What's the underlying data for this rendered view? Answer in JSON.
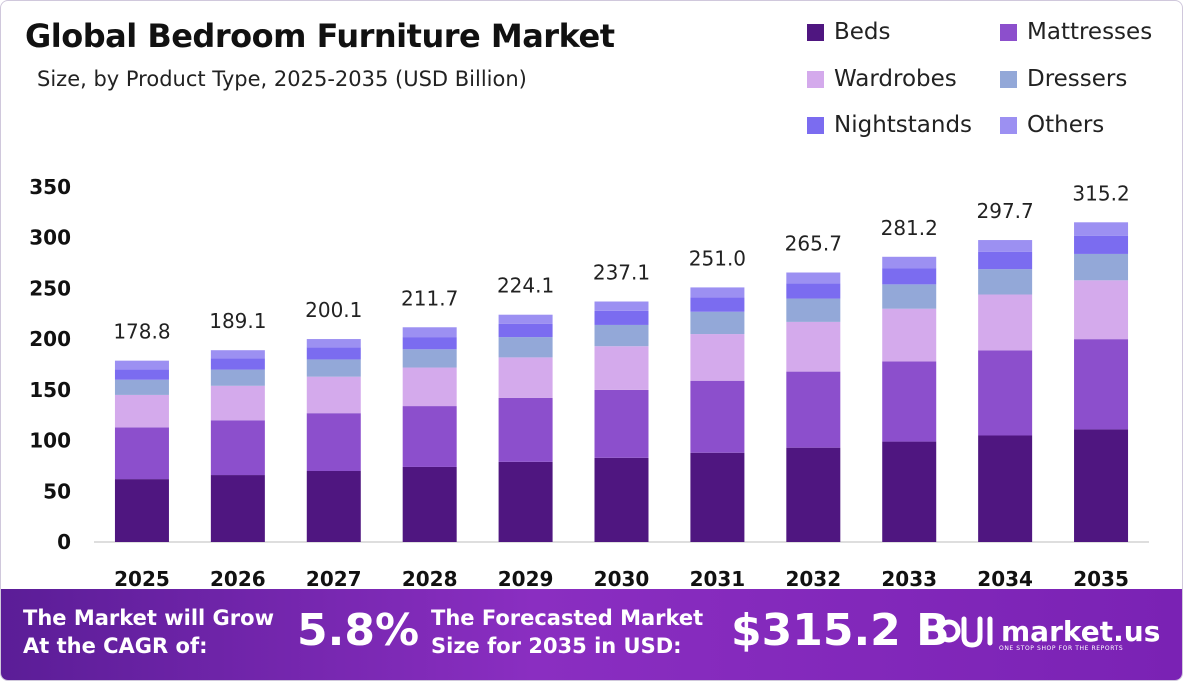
{
  "header": {
    "title": "Global Bedroom Furniture Market",
    "subtitle": "Size, by Product Type, 2025-2035 (USD Billion)"
  },
  "colors": {
    "beds": "#4f1680",
    "mattresses": "#8c4fcc",
    "wardrobes": "#d4aaec",
    "dressers": "#93a8d8",
    "nightstands": "#7b6cf0",
    "others": "#9c90f2",
    "footer_start": "#5b1d97",
    "footer_end": "#8a2ec1"
  },
  "chart_data": {
    "type": "bar",
    "stacked": true,
    "categories": [
      "2025",
      "2026",
      "2027",
      "2028",
      "2029",
      "2030",
      "2031",
      "2032",
      "2033",
      "2034",
      "2035"
    ],
    "series": [
      {
        "name": "Beds",
        "values": [
          62,
          66,
          70,
          74,
          79,
          83,
          88,
          93,
          99,
          105,
          111
        ]
      },
      {
        "name": "Mattresses",
        "values": [
          51,
          54,
          57,
          60,
          63,
          67,
          71,
          75,
          79,
          84,
          89
        ]
      },
      {
        "name": "Wardrobes",
        "values": [
          32,
          34,
          36,
          38,
          40,
          43,
          46,
          49,
          52,
          55,
          58
        ]
      },
      {
        "name": "Dressers",
        "values": [
          15,
          16,
          17,
          18,
          20,
          21,
          22,
          23,
          24,
          25,
          26
        ]
      },
      {
        "name": "Nightstands",
        "values": [
          10,
          11,
          12,
          12,
          13,
          14,
          14,
          15,
          16,
          17,
          18
        ]
      },
      {
        "name": "Others",
        "values": [
          8.8,
          8.1,
          8.1,
          9.7,
          9.1,
          9.1,
          10.0,
          10.7,
          11.2,
          11.7,
          13.2
        ]
      }
    ],
    "totals": [
      178.8,
      189.1,
      200.1,
      211.7,
      224.1,
      237.1,
      251.0,
      265.7,
      281.2,
      297.7,
      315.2
    ],
    "ylim": [
      0,
      350
    ],
    "yticks": [
      0,
      50,
      100,
      150,
      200,
      250,
      300,
      350
    ],
    "grid": false,
    "legend_position": "top-right"
  },
  "footer": {
    "cagr_label_line1": "The Market will Grow",
    "cagr_label_line2": "At the CAGR of:",
    "cagr_value": "5.8%",
    "forecast_label_line1": "The Forecasted Market",
    "forecast_label_line2": "Size for 2035 in USD:",
    "forecast_value": "$315.2 B",
    "brand": "market.us",
    "brand_tagline": "ONE STOP SHOP FOR THE REPORTS"
  }
}
